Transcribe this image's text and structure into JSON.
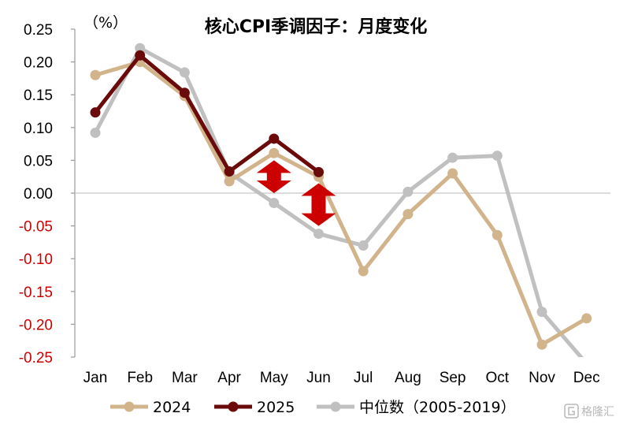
{
  "chart_data": {
    "type": "line",
    "title": "核心CPI季调因子：月度变化",
    "unit_label": "（%）",
    "categories": [
      "Jan",
      "Feb",
      "Mar",
      "Apr",
      "May",
      "Jun",
      "Jul",
      "Aug",
      "Sep",
      "Oct",
      "Nov",
      "Dec"
    ],
    "y_ticks": [
      "0.25",
      "0.20",
      "0.15",
      "0.10",
      "0.05",
      "0.00",
      "-0.05",
      "-0.10",
      "-0.15",
      "-0.20",
      "-0.25"
    ],
    "ylim": [
      -0.25,
      0.25
    ],
    "grid": false,
    "legend_position": "bottom",
    "series": [
      {
        "name": "2024",
        "color": "#d2b48c",
        "values": [
          0.18,
          0.2,
          0.148,
          0.018,
          0.061,
          0.025,
          -0.119,
          -0.032,
          0.03,
          -0.064,
          -0.231,
          -0.191
        ]
      },
      {
        "name": "2025",
        "color": "#6b0a0a",
        "values": [
          0.123,
          0.21,
          0.153,
          0.033,
          0.083,
          0.032,
          null,
          null,
          null,
          null,
          null,
          null
        ]
      },
      {
        "name": "中位数（2005-2019）",
        "color": "#c0c0c0",
        "values": [
          0.092,
          0.221,
          0.184,
          0.031,
          -0.015,
          -0.062,
          -0.08,
          0.002,
          0.054,
          0.057,
          -0.181,
          -0.26
        ]
      }
    ],
    "annotations": [
      {
        "type": "double-arrow",
        "color": "#cc0000",
        "category": "May",
        "from": 0.05,
        "to": 0.0
      },
      {
        "type": "double-arrow",
        "color": "#cc0000",
        "category": "Jun",
        "from": 0.015,
        "to": -0.05
      }
    ]
  },
  "watermark": "格隆汇"
}
